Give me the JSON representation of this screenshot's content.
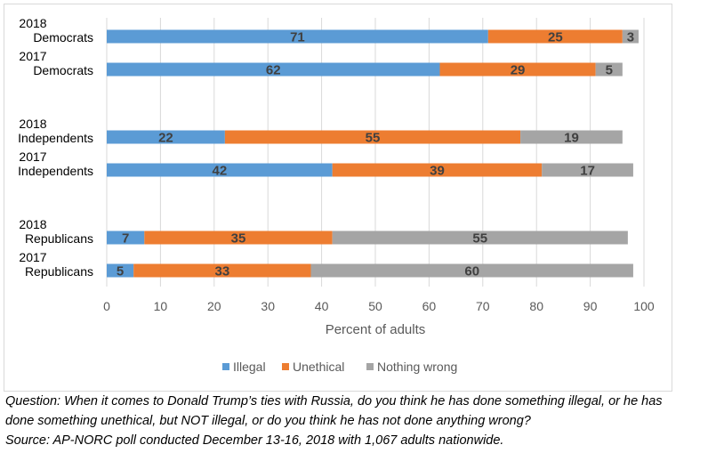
{
  "chart_data": {
    "type": "bar",
    "stacked": true,
    "orientation": "horizontal",
    "categories": [
      [
        "2018",
        "Democrats"
      ],
      [
        "2017",
        "Democrats"
      ],
      [
        "2018",
        "Independents"
      ],
      [
        "2017",
        "Independents"
      ],
      [
        "2018",
        "Republicans"
      ],
      [
        "2017",
        "Republicans"
      ]
    ],
    "series": [
      {
        "name": "Illegal",
        "color": "#5b9bd5",
        "values": [
          71,
          62,
          22,
          42,
          7,
          5
        ]
      },
      {
        "name": "Unethical",
        "color": "#ed7d31",
        "values": [
          25,
          29,
          55,
          39,
          35,
          33
        ]
      },
      {
        "name": "Nothing wrong",
        "color": "#a5a5a5",
        "values": [
          3,
          5,
          19,
          17,
          55,
          60
        ]
      }
    ],
    "xlabel": "Percent of adults",
    "xlim": [
      0,
      100
    ],
    "xticks": [
      "0",
      "10",
      "20",
      "30",
      "40",
      "50",
      "60",
      "70",
      "80",
      "90",
      "100"
    ],
    "grid": true,
    "legend_position": "bottom"
  },
  "caption": {
    "question_line1": "Question: When it comes to Donald Trump’s ties with Russia, do you think he has done something illegal, or he has",
    "question_line2": "done something unethical, but NOT illegal, or do you think he has not done anything wrong?",
    "source": "Source: AP-NORC poll conducted December 13-16, 2018 with 1,067 adults nationwide."
  }
}
